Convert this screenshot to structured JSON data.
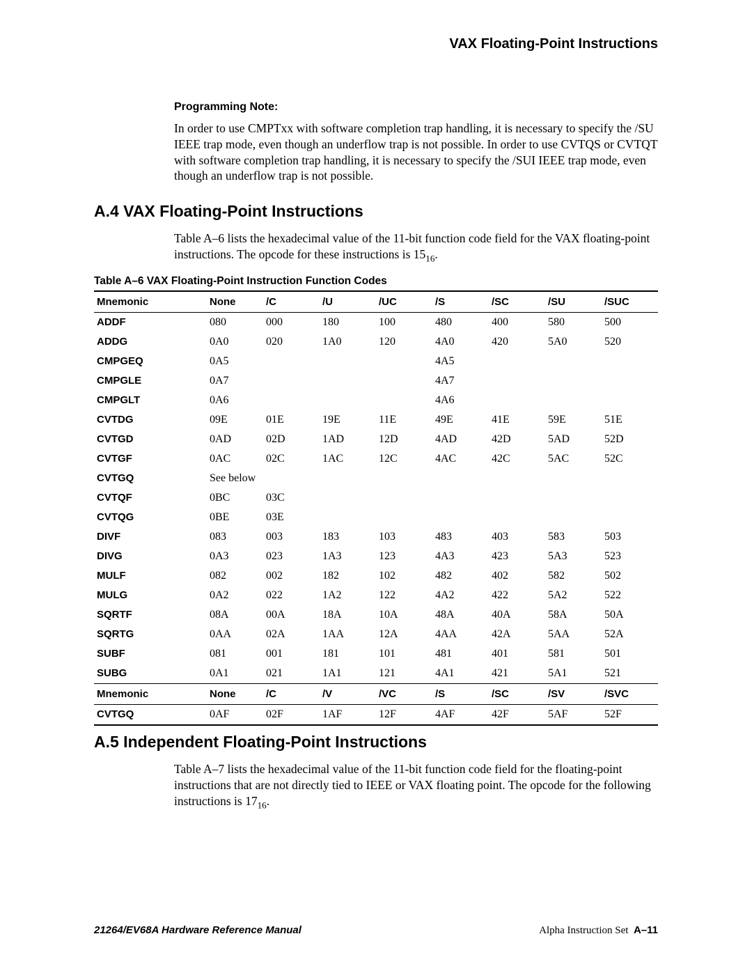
{
  "running_head": "VAX Floating-Point Instructions",
  "note": {
    "title": "Programming Note:",
    "body": "In order to use CMPTxx with software completion trap handling, it is necessary to specify the /SU IEEE trap mode, even though an underflow trap is not possible. In order to use CVTQS or CVTQT with software completion trap handling, it is necessary to specify the /SUI IEEE trap mode, even though an underflow trap is not possible."
  },
  "a4": {
    "heading": "A.4  VAX Floating-Point Instructions",
    "para_pre": "Table A–6 lists the hexadecimal value of the 11-bit function code field for the VAX floating-point instructions. The opcode for these instructions is 15",
    "para_sub": "16",
    "para_post": ".",
    "caption": "Table A–6  VAX Floating-Point Instruction Function Codes",
    "columns": [
      "Mnemonic",
      "None",
      "/C",
      "/U",
      "/UC",
      "/S",
      "/SC",
      "/SU",
      "/SUC"
    ],
    "rows": [
      {
        "m": "ADDF",
        "v": [
          "080",
          "000",
          "180",
          "100",
          "480",
          "400",
          "580",
          "500"
        ]
      },
      {
        "m": "ADDG",
        "v": [
          "0A0",
          "020",
          "1A0",
          "120",
          "4A0",
          "420",
          "5A0",
          "520"
        ]
      },
      {
        "m": "CMPGEQ",
        "v": [
          "0A5",
          "",
          "",
          "",
          "4A5",
          "",
          "",
          ""
        ]
      },
      {
        "m": "CMPGLE",
        "v": [
          "0A7",
          "",
          "",
          "",
          "4A7",
          "",
          "",
          ""
        ]
      },
      {
        "m": "CMPGLT",
        "v": [
          "0A6",
          "",
          "",
          "",
          "4A6",
          "",
          "",
          ""
        ]
      },
      {
        "m": "CVTDG",
        "v": [
          "09E",
          "01E",
          "19E",
          "11E",
          "49E",
          "41E",
          "59E",
          "51E"
        ]
      },
      {
        "m": "CVTGD",
        "v": [
          "0AD",
          "02D",
          "1AD",
          "12D",
          "4AD",
          "42D",
          "5AD",
          "52D"
        ]
      },
      {
        "m": "CVTGF",
        "v": [
          "0AC",
          "02C",
          "1AC",
          "12C",
          "4AC",
          "42C",
          "5AC",
          "52C"
        ]
      },
      {
        "m": "CVTGQ",
        "v": [
          "See below",
          "",
          "",
          "",
          "",
          "",
          "",
          ""
        ]
      },
      {
        "m": "CVTQF",
        "v": [
          "0BC",
          "03C",
          "",
          "",
          "",
          "",
          "",
          ""
        ]
      },
      {
        "m": "CVTQG",
        "v": [
          "0BE",
          "03E",
          "",
          "",
          "",
          "",
          "",
          ""
        ]
      },
      {
        "m": "DIVF",
        "v": [
          "083",
          "003",
          "183",
          "103",
          "483",
          "403",
          "583",
          "503"
        ]
      },
      {
        "m": "DIVG",
        "v": [
          "0A3",
          "023",
          "1A3",
          "123",
          "4A3",
          "423",
          "5A3",
          "523"
        ]
      },
      {
        "m": "MULF",
        "v": [
          "082",
          "002",
          "182",
          "102",
          "482",
          "402",
          "582",
          "502"
        ]
      },
      {
        "m": "MULG",
        "v": [
          "0A2",
          "022",
          "1A2",
          "122",
          "4A2",
          "422",
          "5A2",
          "522"
        ]
      },
      {
        "m": "SQRTF",
        "v": [
          "08A",
          "00A",
          "18A",
          "10A",
          "48A",
          "40A",
          "58A",
          "50A"
        ]
      },
      {
        "m": "SQRTG",
        "v": [
          "0AA",
          "02A",
          "1AA",
          "12A",
          "4AA",
          "42A",
          "5AA",
          "52A"
        ]
      },
      {
        "m": "SUBF",
        "v": [
          "081",
          "001",
          "181",
          "101",
          "481",
          "401",
          "581",
          "501"
        ]
      },
      {
        "m": "SUBG",
        "v": [
          "0A1",
          "021",
          "1A1",
          "121",
          "4A1",
          "421",
          "5A1",
          "521"
        ]
      }
    ],
    "columns2": [
      "Mnemonic",
      "None",
      "/C",
      "/V",
      "/VC",
      "/S",
      "/SC",
      "/SV",
      "/SVC"
    ],
    "rows2": [
      {
        "m": "CVTGQ",
        "v": [
          "0AF",
          "02F",
          "1AF",
          "12F",
          "4AF",
          "42F",
          "5AF",
          "52F"
        ]
      }
    ]
  },
  "a5": {
    "heading": "A.5  Independent Floating-Point Instructions",
    "para_pre": "Table A–7 lists the hexadecimal value of the 11-bit function code field for the floating-point instructions that are not directly tied to IEEE or VAX floating point. The opcode for the following instructions is 17",
    "para_sub": "16",
    "para_post": "."
  },
  "footer": {
    "left": "21264/EV68A Hardware Reference Manual",
    "right_text": "Alpha Instruction Set",
    "right_page": "A–11"
  }
}
